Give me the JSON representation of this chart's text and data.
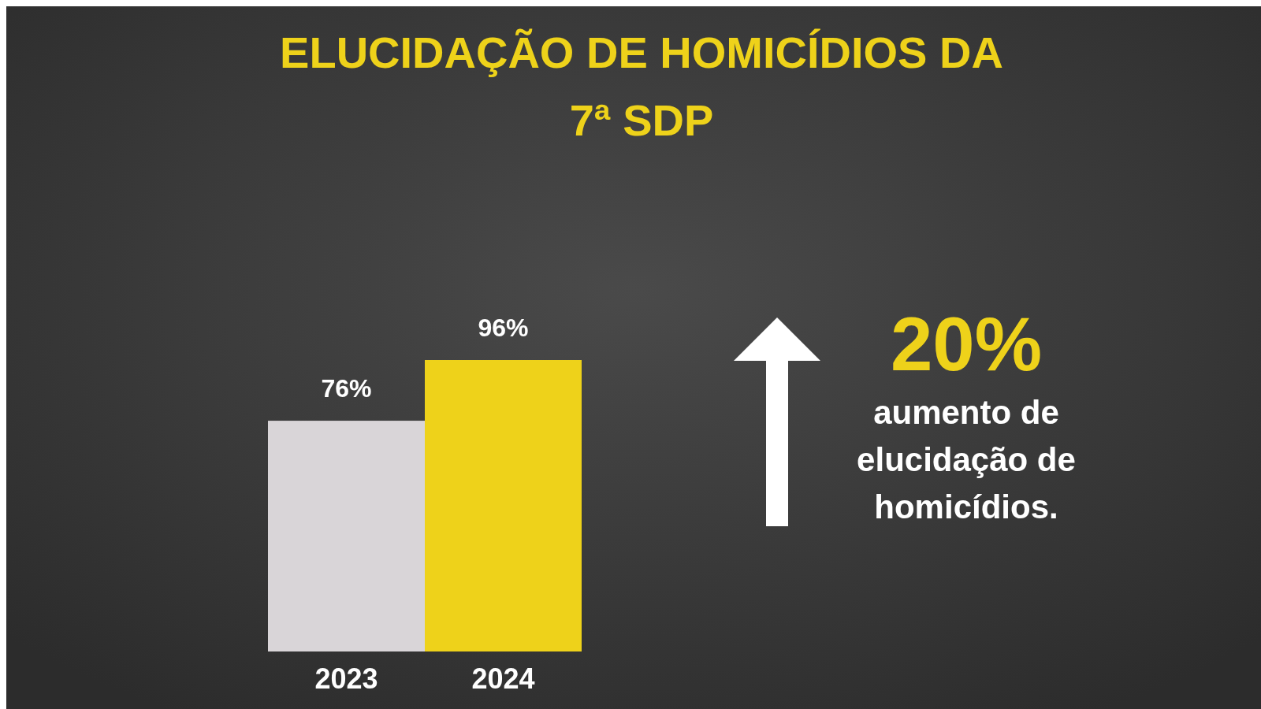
{
  "chart_data": {
    "type": "bar",
    "title": "ELUCIDAÇÃO DE HOMICÍDIOS DA 7ª SDP",
    "categories": [
      "2023",
      "2024"
    ],
    "values": [
      76,
      96
    ],
    "colors": [
      "#d9d5d8",
      "#eed21a"
    ],
    "value_labels": [
      "76%",
      "96%"
    ],
    "annotations": [
      "20%",
      "aumento de elucidação de homicídios."
    ]
  }
}
